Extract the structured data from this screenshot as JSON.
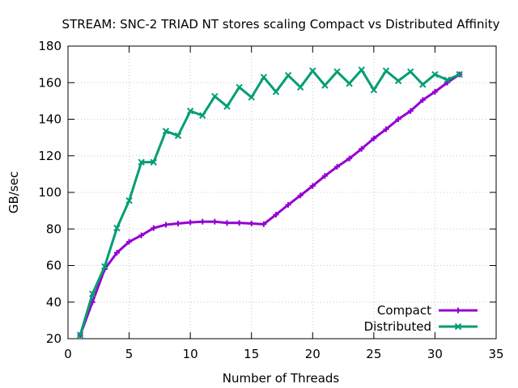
{
  "chart_data": {
    "type": "line",
    "title": "STREAM: SNC-2 TRIAD NT stores scaling Compact vs Distributed Affinity",
    "xlabel": "Number of Threads",
    "ylabel": "GB/sec",
    "xlim": [
      0,
      35
    ],
    "ylim": [
      20,
      180
    ],
    "xticks": [
      0,
      5,
      10,
      15,
      20,
      25,
      30,
      35
    ],
    "yticks": [
      20,
      40,
      60,
      80,
      100,
      120,
      140,
      160,
      180
    ],
    "grid": true,
    "legend_position": "bottom-right",
    "x": [
      1,
      2,
      3,
      4,
      5,
      6,
      7,
      8,
      9,
      10,
      11,
      12,
      13,
      14,
      15,
      16,
      17,
      18,
      19,
      20,
      21,
      22,
      23,
      24,
      25,
      26,
      27,
      28,
      29,
      30,
      31,
      32
    ],
    "series": [
      {
        "name": "Compact",
        "color": "#9400d3",
        "marker": "plus",
        "values": [
          22,
          40,
          58,
          67,
          73,
          76.5,
          80.5,
          82.3,
          83,
          83.6,
          84,
          84,
          83.3,
          83.3,
          83,
          82.6,
          87.8,
          93.2,
          98.3,
          103.5,
          109,
          114,
          118.5,
          123.8,
          129.5,
          134.5,
          140,
          144.5,
          150.5,
          155,
          160,
          164.5
        ]
      },
      {
        "name": "Distributed",
        "color": "#009e73",
        "marker": "cross",
        "values": [
          22,
          44.5,
          59.5,
          80.5,
          95.5,
          116.5,
          116.5,
          133.5,
          131,
          144.5,
          142,
          152.5,
          147,
          157.5,
          152,
          163,
          155,
          164,
          157.5,
          166.5,
          158.5,
          166,
          159.5,
          167,
          156,
          166.5,
          161,
          166,
          159,
          164.5,
          161.5,
          164.5
        ]
      }
    ]
  }
}
